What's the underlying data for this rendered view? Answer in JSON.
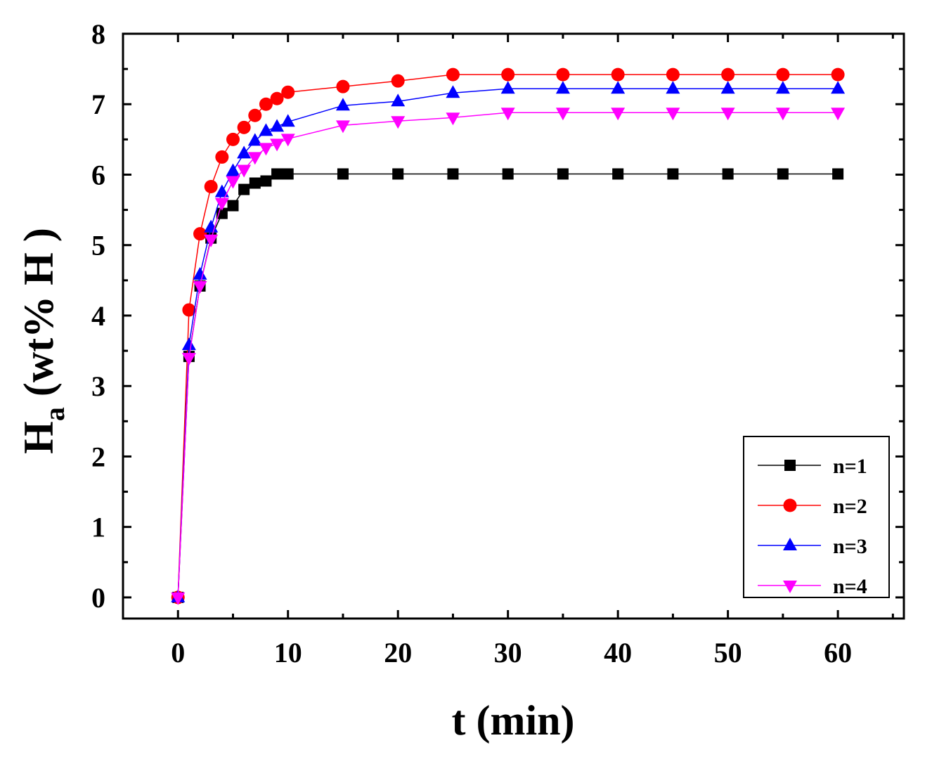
{
  "chart_data": {
    "type": "line",
    "title": "",
    "xlabel": "t (min)",
    "ylabel_main": "H",
    "ylabel_sub": "a",
    "ylabel_rest": " (wt% H )",
    "xlim": [
      -5,
      66
    ],
    "ylim": [
      -0.3,
      8
    ],
    "xticks": [
      0,
      10,
      20,
      30,
      40,
      50,
      60
    ],
    "yticks": [
      0,
      1,
      2,
      3,
      4,
      5,
      6,
      7,
      8
    ],
    "grid": false,
    "legend_position": "bottom-right",
    "x": [
      0,
      1,
      2,
      3,
      4,
      5,
      6,
      7,
      8,
      9,
      10,
      15,
      20,
      25,
      30,
      35,
      40,
      45,
      50,
      55,
      60
    ],
    "series": [
      {
        "name": "n=1",
        "color": "#000000",
        "marker": "square",
        "values": [
          0,
          3.42,
          4.42,
          5.1,
          5.45,
          5.56,
          5.79,
          5.88,
          5.91,
          6.01,
          6.01,
          6.01,
          6.01,
          6.01,
          6.01,
          6.01,
          6.01,
          6.01,
          6.01,
          6.01,
          6.01
        ]
      },
      {
        "name": "n=2",
        "color": "#ff0000",
        "marker": "circle",
        "values": [
          0,
          4.08,
          5.16,
          5.83,
          6.25,
          6.5,
          6.67,
          6.84,
          7.0,
          7.08,
          7.17,
          7.25,
          7.33,
          7.42,
          7.42,
          7.42,
          7.42,
          7.42,
          7.42,
          7.42,
          7.42
        ]
      },
      {
        "name": "n=3",
        "color": "#0000ff",
        "marker": "triangle-up",
        "values": [
          0,
          3.58,
          4.58,
          5.25,
          5.75,
          6.05,
          6.3,
          6.48,
          6.62,
          6.68,
          6.75,
          6.98,
          7.04,
          7.16,
          7.22,
          7.22,
          7.22,
          7.22,
          7.22,
          7.22,
          7.22
        ]
      },
      {
        "name": "n=4",
        "color": "#ff00ff",
        "marker": "triangle-down",
        "values": [
          0,
          3.4,
          4.42,
          5.08,
          5.6,
          5.91,
          6.07,
          6.25,
          6.38,
          6.44,
          6.51,
          6.7,
          6.76,
          6.81,
          6.88,
          6.88,
          6.88,
          6.88,
          6.88,
          6.88,
          6.88
        ]
      }
    ]
  }
}
